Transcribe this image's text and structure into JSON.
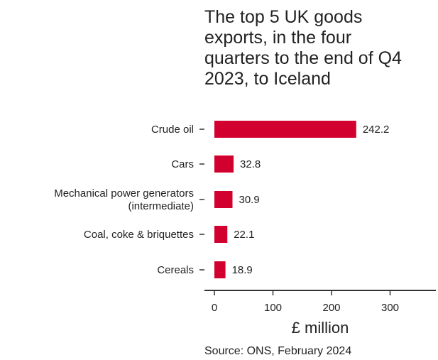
{
  "chart_data": {
    "type": "bar",
    "orientation": "horizontal",
    "title_lines": [
      "The top 5 UK goods",
      "exports, in the four",
      "quarters to the end of Q4",
      "2023, to Iceland"
    ],
    "categories": [
      [
        "Crude oil"
      ],
      [
        "Cars"
      ],
      [
        "Mechanical power generators",
        "(intermediate)"
      ],
      [
        "Coal, coke & briquettes"
      ],
      [
        "Cereals"
      ]
    ],
    "values": [
      242.2,
      32.8,
      30.9,
      22.1,
      18.9
    ],
    "value_labels": [
      "242.2",
      "32.8",
      "30.9",
      "22.1",
      "18.9"
    ],
    "xlabel": "£ million",
    "ylabel": "",
    "xlim": [
      0,
      375
    ],
    "xticks": [
      0,
      100,
      200,
      300
    ],
    "xtick_labels": [
      "0",
      "100",
      "200",
      "300"
    ],
    "grid": false,
    "legend": "none",
    "bar_color": "#d2002e",
    "source": "Source: ONS, February 2024"
  }
}
